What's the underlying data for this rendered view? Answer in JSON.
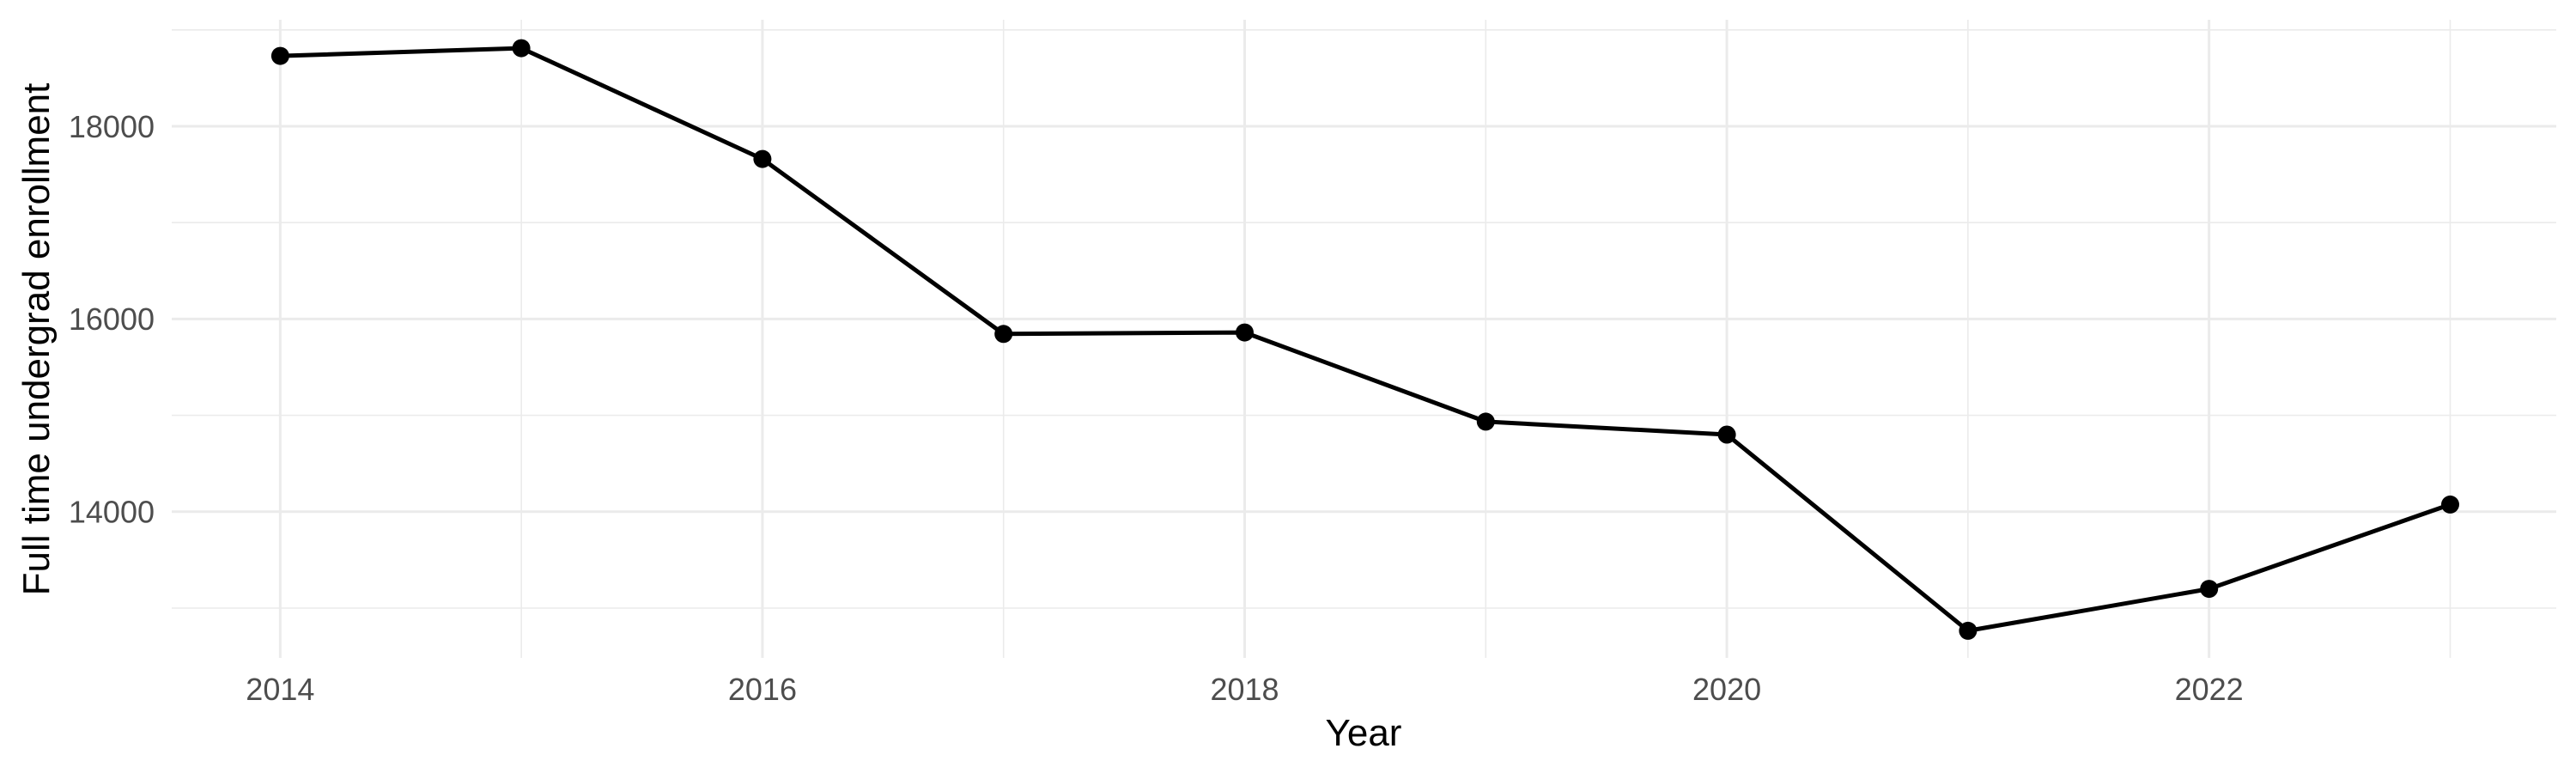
{
  "figure": {
    "kind": "ggplot-line-chart",
    "background": "#ffffff"
  },
  "chart_data": {
    "type": "line",
    "title": "",
    "xlabel": "Year",
    "ylabel": "Full time undergrad enrollment",
    "x": [
      2014,
      2015,
      2016,
      2017,
      2018,
      2019,
      2020,
      2021,
      2022,
      2023
    ],
    "values": [
      18730,
      18810,
      17660,
      15845,
      15860,
      14935,
      14800,
      12765,
      13200,
      14075
    ],
    "series": [
      {
        "name": "Full time undergrad enrollment",
        "values": [
          18730,
          18810,
          17660,
          15845,
          15860,
          14935,
          14800,
          12765,
          13200,
          14075
        ]
      }
    ],
    "x_ticks": [
      2014,
      2016,
      2018,
      2020,
      2022
    ],
    "x_tick_labels": [
      "2014",
      "2016",
      "2018",
      "2020",
      "2022"
    ],
    "x_minor_gridlines": [
      2015,
      2017,
      2019,
      2021,
      2023
    ],
    "y_ticks": [
      14000,
      16000,
      18000
    ],
    "y_tick_labels": [
      "14000",
      "16000",
      "18000"
    ],
    "y_minor_gridlines": [
      13000,
      15000,
      17000,
      19000
    ],
    "xlim": [
      2013.55,
      2023.44
    ],
    "ylim": [
      12483,
      19105
    ],
    "grid": true,
    "legend": false,
    "marker": "circle",
    "style": {
      "line_color": "#000000",
      "point_color": "#000000",
      "grid_color": "#ebebeb",
      "tick_label_color": "#4d4d4d",
      "axis_title_color": "#000000",
      "background": "#ffffff"
    }
  }
}
